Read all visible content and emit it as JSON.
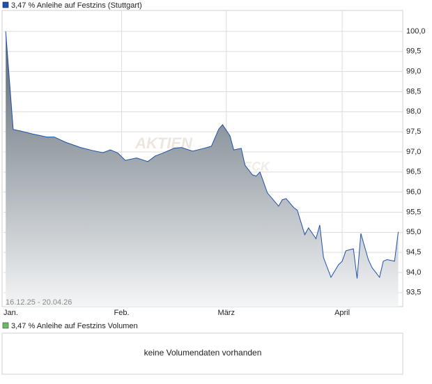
{
  "chart_data": {
    "type": "area",
    "series": [
      {
        "name": "3,47 % Anleihe auf Festzins (Stuttgart)",
        "color": "#1f4fb0",
        "fill_top": "#56646f",
        "fill_bottom": "#f4f5f6",
        "x": [
          0,
          2,
          4,
          7,
          11,
          13,
          16,
          20,
          23,
          26,
          28,
          30,
          32,
          35,
          38,
          40,
          42,
          45,
          47,
          50,
          53,
          55,
          57,
          58,
          60,
          61,
          63,
          64,
          66,
          67,
          68,
          70,
          73,
          74,
          75,
          77,
          78,
          80,
          81,
          83,
          84,
          85,
          87,
          89,
          90,
          91,
          93,
          94,
          95,
          97,
          98,
          100,
          101,
          102,
          104,
          105
        ],
        "values": [
          100,
          97.56,
          97.52,
          97.45,
          97.37,
          97.37,
          97.24,
          97.11,
          97.04,
          96.98,
          97.05,
          96.97,
          96.79,
          96.85,
          96.76,
          96.9,
          96.97,
          97.09,
          97.11,
          97.02,
          97.09,
          97.14,
          97.57,
          97.68,
          97.4,
          97.05,
          97.09,
          96.67,
          96.43,
          96.4,
          96.5,
          95.98,
          95.65,
          95.81,
          95.84,
          95.62,
          95.55,
          94.94,
          95.11,
          94.84,
          95.18,
          94.37,
          93.88,
          94.19,
          94.28,
          94.54,
          94.59,
          93.85,
          94.97,
          94.32,
          94.12,
          93.88,
          94.28,
          94.32,
          94.28,
          95.01
        ]
      }
    ],
    "xlim": [
      -0.6,
      106.2
    ],
    "xticks": [
      {
        "value": 0,
        "label": "Jan."
      },
      {
        "value": 31,
        "label": "Feb."
      },
      {
        "value": 59,
        "label": "März"
      },
      {
        "value": 90,
        "label": "April"
      }
    ],
    "ylim": [
      93.15,
      100.52
    ],
    "yticks": [
      {
        "value": 93.5,
        "label": "93,5"
      },
      {
        "value": 94,
        "label": "94,0"
      },
      {
        "value": 94.5,
        "label": "94,5"
      },
      {
        "value": 95,
        "label": "95,0"
      },
      {
        "value": 95.5,
        "label": "95,5"
      },
      {
        "value": 96,
        "label": "96,0"
      },
      {
        "value": 96.5,
        "label": "96,5"
      },
      {
        "value": 97,
        "label": "97,0"
      },
      {
        "value": 97.5,
        "label": "97,5"
      },
      {
        "value": 98,
        "label": "98,0"
      },
      {
        "value": 98.5,
        "label": "98,5"
      },
      {
        "value": 99,
        "label": "99,0"
      },
      {
        "value": 99.5,
        "label": "99,5"
      },
      {
        "value": 100,
        "label": "100,0"
      }
    ],
    "grid": true,
    "date_range_label": "16.12.25 - 20.04.26",
    "watermark": [
      "AKTIEN",
      "CHECK"
    ]
  },
  "volume_panel": {
    "legend": "3,47 % Anleihe auf Festzins Volumen",
    "legend_color": "#66bb66",
    "message": "keine Volumendaten vorhanden"
  }
}
